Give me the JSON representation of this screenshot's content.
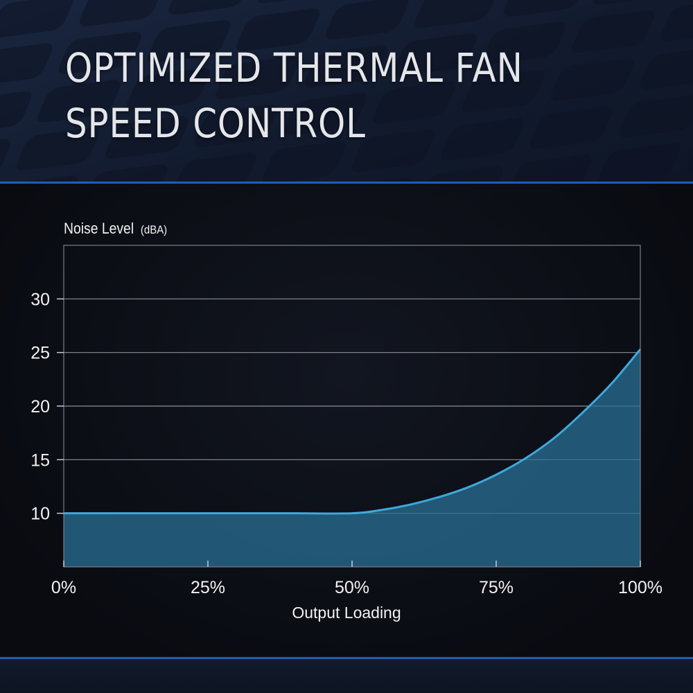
{
  "header": {
    "title": "OPTIMIZED THERMAL FAN SPEED CONTROL"
  },
  "colors": {
    "accent_rule": "#1f5fb8",
    "curve": "#3ea9dc",
    "area_fill": "#2a6f95"
  },
  "chart_data": {
    "type": "area",
    "title": "",
    "ylabel": "Noise Level",
    "ylabel_unit": "(dBA)",
    "xlabel": "Output Loading",
    "x_ticks": [
      "0%",
      "25%",
      "50%",
      "75%",
      "100%"
    ],
    "y_ticks": [
      "10",
      "15",
      "20",
      "25",
      "30"
    ],
    "x_range": [
      0,
      100
    ],
    "ylim": [
      5,
      35
    ],
    "grid": "horizontal",
    "legend": "none",
    "series": [
      {
        "x": [
          0,
          10,
          20,
          30,
          40,
          50,
          55,
          60,
          65,
          70,
          75,
          80,
          85,
          90,
          95,
          100
        ],
        "values": [
          10,
          10,
          10,
          10,
          10,
          10,
          10.3,
          10.8,
          11.5,
          12.4,
          13.6,
          15.1,
          17,
          19.4,
          22.1,
          25.3
        ]
      }
    ]
  }
}
